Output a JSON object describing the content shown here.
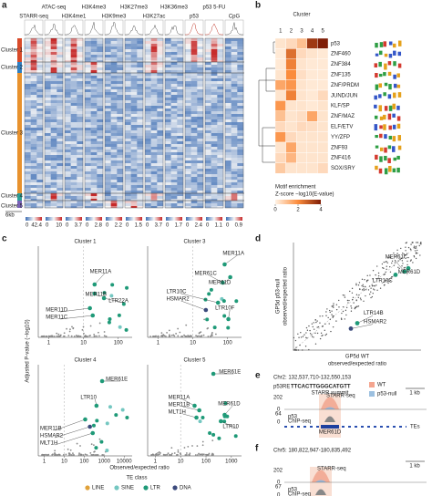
{
  "panels": {
    "a": {
      "letter": "a",
      "tracks": [
        "STARR-seq",
        "ATAC-seq",
        "H3K4me1",
        "H3K4me3",
        "H3K9me3",
        "H3K27me3",
        "H3K27ac",
        "H3K36me3",
        "p53",
        "p53 5-FU",
        "CpG"
      ],
      "clusters": [
        "Cluster 1",
        "Cluster 2",
        "Cluster 3",
        "Cluster 4",
        "Cluster 5"
      ],
      "scale_bar": "6kb",
      "scale_labels": [
        [
          "0",
          "42.4"
        ],
        [
          "0",
          "10"
        ],
        [
          "0",
          "3.7"
        ],
        [
          "0",
          "2.8"
        ],
        [
          "0",
          "2.2"
        ],
        [
          "0",
          "1.5"
        ],
        [
          "0",
          "3.7"
        ],
        [
          "0",
          "1.7"
        ],
        [
          "0",
          "2.4"
        ],
        [
          "0",
          "1.1"
        ],
        [
          "0",
          "0.9"
        ]
      ]
    },
    "b": {
      "letter": "b",
      "title": "Cluster",
      "columns": [
        1,
        2,
        3,
        4,
        5
      ],
      "motifs": [
        "p53",
        "ZNF460",
        "ZNF384",
        "ZNF135",
        "ZNF/PRDM",
        "JUND/JUN",
        "KLF/SP",
        "ZNF/MAZ",
        "ELF/ETV",
        "YY/ZFP",
        "ZNF93",
        "ZNF416",
        "SOX/SRY"
      ],
      "heatmap": [
        [
          0.3,
          0.5,
          1.0,
          3.5,
          5
        ],
        [
          0.2,
          2.5,
          0.5,
          0.3,
          0.2
        ],
        [
          0.2,
          2.2,
          0.3,
          0.2,
          0.2
        ],
        [
          0.3,
          2.0,
          0.4,
          0.2,
          0.2
        ],
        [
          1.5,
          1.8,
          0.3,
          0.2,
          0.2
        ],
        [
          0.3,
          2.2,
          0.3,
          0.2,
          0.5
        ],
        [
          1.8,
          0.3,
          0.3,
          0.2,
          0.3
        ],
        [
          1.0,
          0.3,
          0.4,
          1.5,
          0.3
        ],
        [
          0.5,
          0.3,
          0.5,
          0.4,
          0.3
        ],
        [
          1.8,
          0.5,
          0.3,
          0.3,
          0.3
        ],
        [
          0.3,
          1.5,
          0.3,
          0.3,
          0.3
        ],
        [
          0.5,
          1.2,
          0.3,
          0.3,
          0.3
        ],
        [
          0.8,
          0.3,
          0.3,
          0.3,
          0.5
        ]
      ],
      "legend_title": "Motif enrichment",
      "legend_subtitle": "Z-score −log10(E-value)",
      "legend_ticks": [
        0,
        2,
        4
      ]
    },
    "c": {
      "letter": "c",
      "y_label": "Adjusted P-value (−log10)",
      "x_label": "Observed/expected ratio",
      "plots": [
        {
          "title": "Cluster 1",
          "xticks": [
            1,
            10,
            100
          ],
          "labels": [
            "MER11A",
            "MER11B",
            "LTR22A",
            "MER11D",
            "MER11C"
          ]
        },
        {
          "title": "Cluster 3",
          "xticks": [
            1,
            10,
            100
          ],
          "labels": [
            "MER11A",
            "MER61C",
            "MER61D",
            "LTR10C",
            "HSMAR2",
            "LTR10F"
          ]
        },
        {
          "title": "Cluster 4",
          "xticks": [
            1,
            10,
            100,
            1000,
            10000
          ],
          "labels": [
            "MER61E",
            "LTR10",
            "MER11B",
            "HSMAR2",
            "MLT1H"
          ]
        },
        {
          "title": "Cluster 5",
          "xticks": [
            1,
            10,
            100,
            1000
          ],
          "labels": [
            "MER61E",
            "MER11A",
            "MER11B",
            "MLT1H",
            "MER61D",
            "LTR10"
          ]
        }
      ],
      "legend_title": "TE class",
      "classes": [
        {
          "name": "LINE",
          "color": "#e0a13a"
        },
        {
          "name": "SINE",
          "color": "#74c7c1"
        },
        {
          "name": "LTR",
          "color": "#1f9a78"
        },
        {
          "name": "DNA",
          "color": "#3b4a7c"
        }
      ]
    },
    "d": {
      "letter": "d",
      "labels": [
        "MER61C",
        "MER61D",
        "LTR10C",
        "LTR14B",
        "HSMAR2"
      ],
      "y_label": [
        "GP5d p53-null",
        "observed/expected ratio"
      ],
      "x_label": [
        "GP5d WT",
        "observed/expected ratio"
      ]
    },
    "e": {
      "letter": "e",
      "locus": "Chr2: 132,537,710-132,550,153",
      "legend": [
        "WT",
        "p53-null"
      ],
      "motif": "p53RE",
      "sequence": "TTCACTTGGGCATGTT",
      "summit": "STARR summit",
      "scale": "1 kb",
      "track1": "STARR-seq",
      "track1_max": "202",
      "track1_min": "0",
      "track2": [
        "p53",
        "ChIP-seq"
      ],
      "track2_max": "64",
      "track2_min": "0",
      "te": "MER61D",
      "te_track": "TEs"
    },
    "f": {
      "letter": "f",
      "locus": "Chr5: 180,822,947-180,835,492",
      "scale": "1 kb",
      "track1": "STARR-seq",
      "track1_max": "202",
      "track1_min": "0",
      "track2": [
        "p53",
        "ChIP-seq"
      ],
      "track2_max": "67",
      "track2_min": "0",
      "te": "MER11A",
      "te_track": "TEs"
    }
  }
}
